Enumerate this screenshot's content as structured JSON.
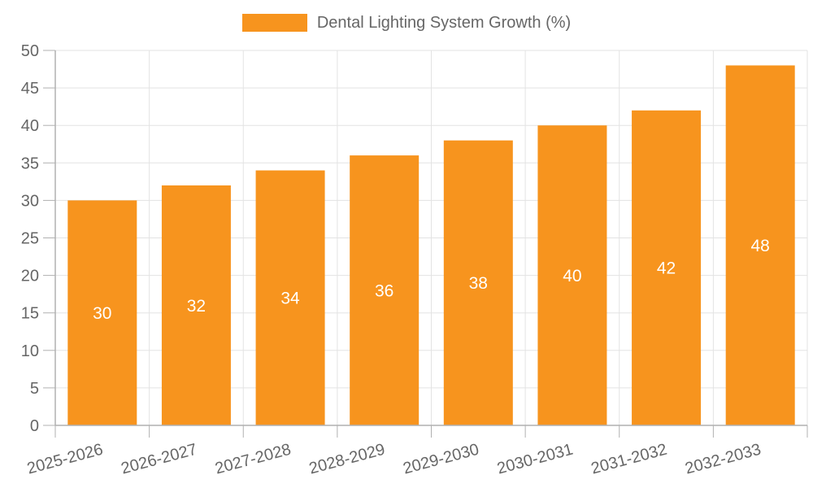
{
  "style": {
    "background": "#ffffff",
    "bar_color": "#f7941e",
    "value_label_color": "#ffffff",
    "text_color": "#666666",
    "grid_color": "#e3e3e3",
    "axis_color": "#b0b0b0"
  },
  "legend": {
    "label": "Dental Lighting System Growth (%)"
  },
  "chart_data": {
    "type": "bar",
    "title": "Dental Lighting System Growth (%)",
    "categories": [
      "2025-2026",
      "2026-2027",
      "2027-2028",
      "2028-2029",
      "2029-2030",
      "2030-2031",
      "2031-2032",
      "2032-2033"
    ],
    "series": [
      {
        "name": "Dental Lighting System Growth (%)",
        "values": [
          30,
          32,
          34,
          36,
          38,
          40,
          42,
          48
        ]
      }
    ],
    "xlabel": "",
    "ylabel": "",
    "ylim": [
      0,
      50
    ],
    "yticks": [
      0,
      5,
      10,
      15,
      20,
      25,
      30,
      35,
      40,
      45,
      50
    ],
    "grid": true,
    "legend_position": "top-center",
    "value_labels": "inside-center-white",
    "x_tick_rotation_deg": -15
  }
}
